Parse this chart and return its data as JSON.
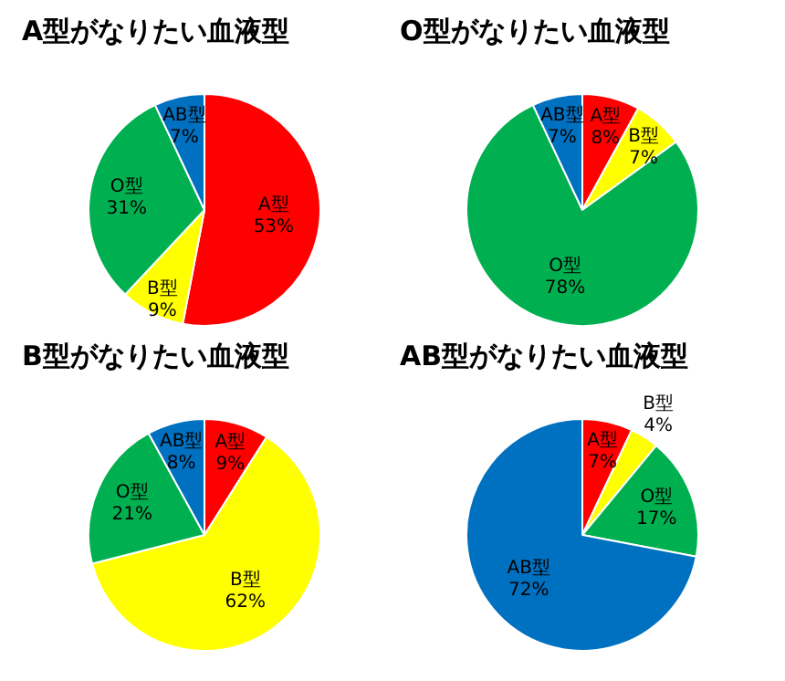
{
  "chart_data": [
    {
      "type": "pie",
      "title": "A型がなりたい血液型",
      "categories": [
        "A型",
        "B型",
        "O型",
        "AB型"
      ],
      "values": [
        53,
        9,
        31,
        7
      ],
      "colors": [
        "#ff0000",
        "#ffff00",
        "#00b050",
        "#0070c0"
      ],
      "value_labels": [
        "53%",
        "9%",
        "31%",
        "7%"
      ],
      "legend": false
    },
    {
      "type": "pie",
      "title": "O型がなりたい血液型",
      "categories": [
        "A型",
        "B型",
        "O型",
        "AB型"
      ],
      "values": [
        8,
        7,
        78,
        7
      ],
      "colors": [
        "#ff0000",
        "#ffff00",
        "#00b050",
        "#0070c0"
      ],
      "value_labels": [
        "8%",
        "7%",
        "78%",
        "7%"
      ],
      "legend": false
    },
    {
      "type": "pie",
      "title": "B型がなりたい血液型",
      "categories": [
        "A型",
        "B型",
        "O型",
        "AB型"
      ],
      "values": [
        9,
        62,
        21,
        8
      ],
      "colors": [
        "#ff0000",
        "#ffff00",
        "#00b050",
        "#0070c0"
      ],
      "value_labels": [
        "9%",
        "62%",
        "21%",
        "8%"
      ],
      "legend": false
    },
    {
      "type": "pie",
      "title": "AB型がなりたい血液型",
      "categories": [
        "A型",
        "B型",
        "O型",
        "AB型"
      ],
      "values": [
        7,
        4,
        17,
        72
      ],
      "colors": [
        "#ff0000",
        "#ffff00",
        "#00b050",
        "#0070c0"
      ],
      "value_labels": [
        "7%",
        "4%",
        "17%",
        "72%"
      ],
      "legend": false
    }
  ]
}
